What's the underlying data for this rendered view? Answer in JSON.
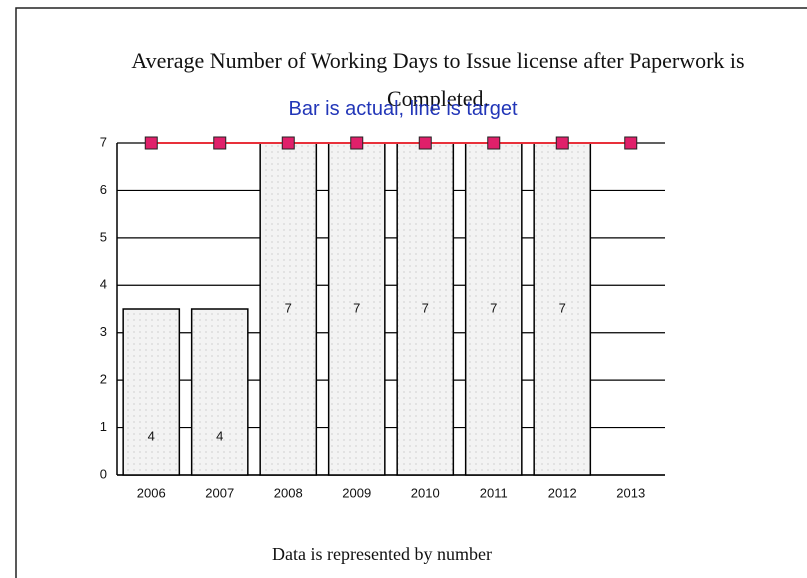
{
  "chart_data": {
    "type": "bar",
    "title": "Average Number of Working Days to Issue license after Paperwork is Completed.",
    "subtitle": "Bar is actual, line is target",
    "caption": "Data is represented by number",
    "categories": [
      "2006",
      "2007",
      "2008",
      "2009",
      "2010",
      "2011",
      "2012",
      "2013"
    ],
    "series": [
      {
        "type": "bar",
        "color": "#f0f0f0",
        "values": [
          3.5,
          3.5,
          7,
          7,
          7,
          7,
          7,
          null
        ],
        "value_labels": [
          "4",
          "4",
          "7",
          "7",
          "7",
          "7",
          "7",
          null
        ]
      },
      {
        "type": "line",
        "color": "#e8303a",
        "values": [
          7,
          7,
          7,
          7,
          7,
          7,
          7,
          7
        ]
      }
    ],
    "ylim": [
      0,
      7
    ],
    "yticks": [
      0,
      1,
      2,
      3,
      4,
      5,
      6,
      7
    ],
    "grid": true
  }
}
